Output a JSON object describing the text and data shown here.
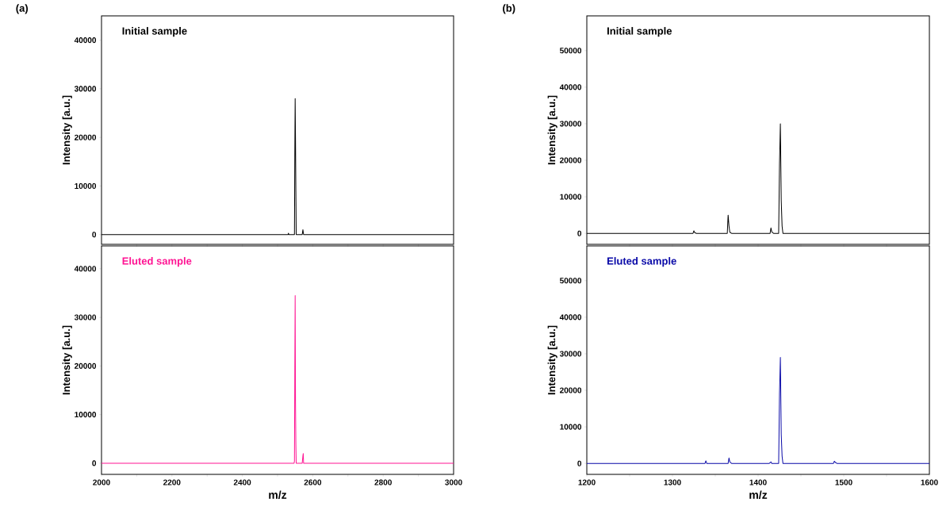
{
  "chart_data": [
    {
      "type": "line",
      "annotations": [
        "(a)"
      ],
      "ylabel": "Intensity [a.u.]",
      "legend": "top left",
      "tick_labels": "y",
      "x": [
        2000,
        2520,
        2530,
        2531,
        2532,
        2545,
        2548,
        2549,
        2550,
        2551,
        2552,
        2553,
        2556,
        2570,
        2572,
        2574,
        2576,
        2600,
        3000
      ],
      "series": [
        {
          "name": "Initial sample",
          "color": "#000000",
          "values": [
            0,
            0,
            0,
            300,
            0,
            0,
            0,
            16000,
            28000,
            19500,
            9000,
            0,
            0,
            0,
            1000,
            0,
            0,
            0,
            0
          ]
        }
      ],
      "xlim": [
        2000,
        3000
      ],
      "xticks": [
        2000,
        {
          "value": 2100,
          "label": null
        },
        2200,
        {
          "value": 2300,
          "label": null
        },
        2400,
        {
          "value": 2500,
          "label": null
        },
        2600,
        {
          "value": 2700,
          "label": null
        },
        2800,
        {
          "value": 2900,
          "label": null
        },
        3000
      ],
      "ylim": [
        -2000,
        45000
      ],
      "yticks": [
        0,
        10000,
        20000,
        30000,
        40000
      ]
    },
    {
      "type": "line",
      "annotations": [
        "(b)"
      ],
      "ylabel": "Intensity [a.u.]",
      "legend": "top left",
      "tick_labels": "y",
      "x": [
        1200,
        1322,
        1324,
        1325,
        1326,
        1328,
        1362,
        1364,
        1365,
        1366,
        1367,
        1369,
        1412,
        1414,
        1415,
        1416,
        1418,
        1423,
        1424,
        1425,
        1426,
        1427,
        1428,
        1429,
        1431,
        1600
      ],
      "series": [
        {
          "name": "Initial sample",
          "color": "#000000",
          "values": [
            0,
            0,
            0,
            700,
            200,
            0,
            0,
            0,
            5000,
            2000,
            300,
            0,
            0,
            0,
            1500,
            400,
            0,
            0,
            0,
            19000,
            30000,
            9000,
            2000,
            0,
            0,
            0
          ]
        }
      ],
      "xlim": [
        1200,
        1600
      ],
      "xticks": [
        1200,
        {
          "value": 1250,
          "label": null
        },
        1300,
        {
          "value": 1350,
          "label": null
        },
        1400,
        {
          "value": 1450,
          "label": null
        },
        1500,
        {
          "value": 1550,
          "label": null
        },
        1600
      ],
      "ylim": [
        -3000,
        59500
      ],
      "yticks": [
        0,
        10000,
        20000,
        30000,
        40000,
        50000
      ]
    },
    {
      "type": "line",
      "xlabel": "m/z",
      "ylabel": "Intensity [a.u.]",
      "legend": "top left",
      "x": [
        2000,
        2545,
        2547,
        2548,
        2549,
        2550,
        2551,
        2552,
        2553,
        2555,
        2570,
        2572,
        2573,
        2574,
        2576,
        3000
      ],
      "series": [
        {
          "name": "Eluted sample",
          "color": "#ff1493",
          "values": [
            0,
            0,
            0,
            400,
            19000,
            34500,
            12500,
            4000,
            0,
            0,
            0,
            1500,
            2000,
            0,
            0,
            0
          ]
        }
      ],
      "xlim": [
        2000,
        3000
      ],
      "xticks": [
        2000,
        {
          "value": 2100,
          "label": null
        },
        2200,
        {
          "value": 2300,
          "label": null
        },
        2400,
        {
          "value": 2500,
          "label": null
        },
        2600,
        {
          "value": 2700,
          "label": null
        },
        2800,
        {
          "value": 2900,
          "label": null
        },
        3000
      ],
      "ylim": [
        -2300,
        44700
      ],
      "yticks": [
        0,
        10000,
        20000,
        30000,
        40000
      ]
    },
    {
      "type": "line",
      "xlabel": "m/z",
      "ylabel": "Intensity [a.u.]",
      "legend": "top left",
      "x": [
        1200,
        1336,
        1338,
        1339,
        1340,
        1342,
        1363,
        1365,
        1366,
        1367,
        1369,
        1413,
        1415,
        1416,
        1418,
        1423,
        1424,
        1425,
        1426,
        1427,
        1428,
        1429,
        1431,
        1486,
        1488,
        1489,
        1490,
        1492,
        1600
      ],
      "series": [
        {
          "name": "Eluted sample",
          "color": "#0a0aa8",
          "values": [
            0,
            0,
            0,
            700,
            0,
            0,
            0,
            0,
            1500,
            400,
            0,
            0,
            400,
            0,
            0,
            0,
            0,
            19000,
            29000,
            8000,
            2000,
            0,
            0,
            0,
            0,
            600,
            300,
            0,
            0
          ]
        }
      ],
      "xlim": [
        1200,
        1600
      ],
      "xticks": [
        1200,
        {
          "value": 1250,
          "label": null
        },
        1300,
        {
          "value": 1350,
          "label": null
        },
        1400,
        {
          "value": 1450,
          "label": null
        },
        1500,
        {
          "value": 1550,
          "label": null
        },
        1600
      ],
      "ylim": [
        -3000,
        59500
      ],
      "yticks": [
        0,
        10000,
        20000,
        30000,
        40000,
        50000
      ]
    }
  ]
}
